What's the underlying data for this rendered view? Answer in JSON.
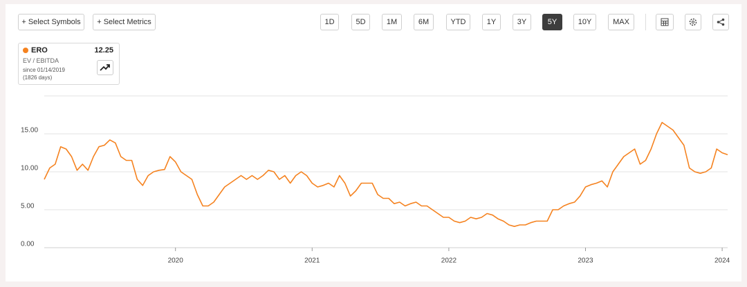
{
  "toolbar": {
    "left_buttons": [
      "+ Select Symbols",
      "+ Select Metrics"
    ],
    "ranges": [
      "1D",
      "5D",
      "1M",
      "6M",
      "YTD",
      "1Y",
      "3Y",
      "5Y",
      "10Y",
      "MAX"
    ],
    "active_range": "5Y"
  },
  "legend": {
    "symbol": "ERO",
    "value": "12.25",
    "metric": "EV / EBITDA",
    "since": "since 01/14/2019",
    "days": "(1826 days)"
  },
  "chart_data": {
    "type": "line",
    "color": "#f5821f",
    "grid": true,
    "xlim": [
      2019.04,
      2024.04
    ],
    "xticks": [
      2020,
      2021,
      2022,
      2023,
      2024
    ],
    "ylim": [
      0,
      20
    ],
    "yticks": [
      {
        "value": 0,
        "label": "0.00"
      },
      {
        "value": 5,
        "label": "5.00"
      },
      {
        "value": 10,
        "label": "10.00"
      },
      {
        "value": 15,
        "label": "15.00"
      }
    ],
    "x": [
      2019.04,
      2019.08,
      2019.12,
      2019.16,
      2019.2,
      2019.24,
      2019.28,
      2019.32,
      2019.36,
      2019.4,
      2019.44,
      2019.48,
      2019.52,
      2019.56,
      2019.6,
      2019.64,
      2019.68,
      2019.72,
      2019.76,
      2019.8,
      2019.84,
      2019.88,
      2019.92,
      2019.96,
      2020.0,
      2020.04,
      2020.08,
      2020.12,
      2020.16,
      2020.2,
      2020.24,
      2020.28,
      2020.32,
      2020.36,
      2020.4,
      2020.44,
      2020.48,
      2020.52,
      2020.56,
      2020.6,
      2020.64,
      2020.68,
      2020.72,
      2020.76,
      2020.8,
      2020.84,
      2020.88,
      2020.92,
      2020.96,
      2021.0,
      2021.04,
      2021.08,
      2021.12,
      2021.16,
      2021.2,
      2021.24,
      2021.28,
      2021.32,
      2021.36,
      2021.4,
      2021.44,
      2021.48,
      2021.52,
      2021.56,
      2021.6,
      2021.64,
      2021.68,
      2021.72,
      2021.76,
      2021.8,
      2021.84,
      2021.88,
      2021.92,
      2021.96,
      2022.0,
      2022.04,
      2022.08,
      2022.12,
      2022.16,
      2022.2,
      2022.24,
      2022.28,
      2022.32,
      2022.36,
      2022.4,
      2022.44,
      2022.48,
      2022.52,
      2022.56,
      2022.6,
      2022.64,
      2022.68,
      2022.72,
      2022.76,
      2022.8,
      2022.84,
      2022.88,
      2022.92,
      2022.96,
      2023.0,
      2023.04,
      2023.08,
      2023.12,
      2023.16,
      2023.2,
      2023.24,
      2023.28,
      2023.32,
      2023.36,
      2023.4,
      2023.44,
      2023.48,
      2023.52,
      2023.56,
      2023.6,
      2023.64,
      2023.68,
      2023.72,
      2023.76,
      2023.8,
      2023.84,
      2023.88,
      2023.92,
      2023.96,
      2024.0,
      2024.04
    ],
    "values": [
      9.0,
      10.5,
      11.0,
      13.3,
      13.0,
      12.0,
      10.2,
      11.0,
      10.2,
      12.0,
      13.3,
      13.5,
      14.2,
      13.8,
      12.0,
      11.5,
      11.5,
      9.0,
      8.2,
      9.5,
      10.0,
      10.2,
      10.3,
      12.0,
      11.3,
      10.0,
      9.5,
      9.0,
      7.0,
      5.5,
      5.5,
      6.0,
      7.0,
      8.0,
      8.5,
      9.0,
      9.5,
      9.0,
      9.5,
      9.0,
      9.5,
      10.2,
      10.0,
      9.0,
      9.5,
      8.5,
      9.5,
      10.0,
      9.5,
      8.5,
      8.0,
      8.2,
      8.5,
      8.0,
      9.5,
      8.5,
      6.8,
      7.5,
      8.5,
      8.5,
      8.5,
      7.0,
      6.5,
      6.5,
      5.8,
      6.0,
      5.5,
      5.8,
      6.0,
      5.5,
      5.5,
      5.0,
      4.5,
      4.0,
      4.0,
      3.5,
      3.3,
      3.5,
      4.0,
      3.8,
      4.0,
      4.5,
      4.3,
      3.8,
      3.5,
      3.0,
      2.8,
      3.0,
      3.0,
      3.3,
      3.5,
      3.5,
      3.5,
      5.0,
      5.0,
      5.5,
      5.8,
      6.0,
      6.8,
      8.0,
      8.3,
      8.5,
      8.8,
      8.0,
      10.0,
      11.0,
      12.0,
      12.5,
      13.0,
      11.0,
      11.5,
      13.0,
      15.0,
      16.5,
      16.0,
      15.5,
      14.5,
      13.5,
      10.5,
      10.0,
      9.8,
      10.0,
      10.5,
      13.0,
      12.5,
      12.25
    ]
  }
}
